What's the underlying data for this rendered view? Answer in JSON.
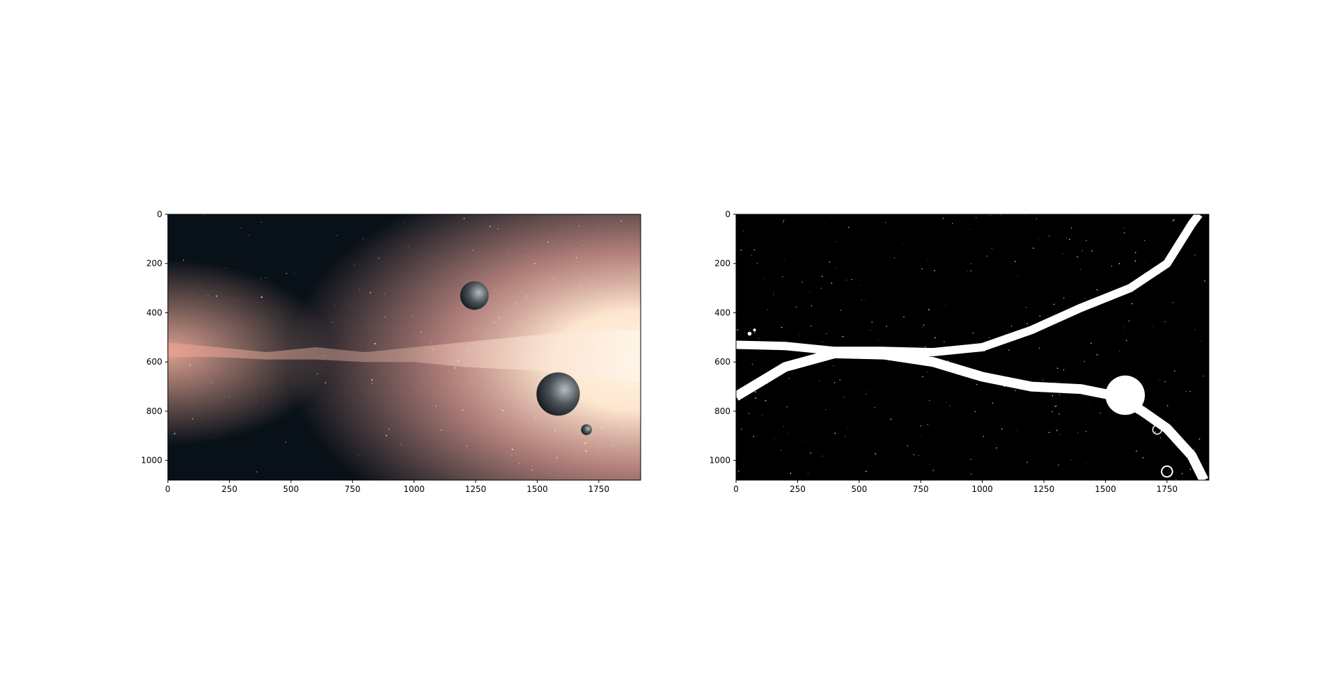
{
  "chart_data": [
    {
      "type": "image",
      "title": "",
      "xlabel": "",
      "ylabel": "",
      "xlim": [
        0,
        1920
      ],
      "ylim": [
        1080,
        0
      ],
      "y_inverted": true,
      "grid": false,
      "xticks": [
        0,
        250,
        500,
        750,
        1000,
        1250,
        1500,
        1750
      ],
      "yticks": [
        0,
        200,
        400,
        600,
        800,
        1000
      ],
      "xtick_labels": [
        "0",
        "250",
        "500",
        "750",
        "1000",
        "1250",
        "1500",
        "1750"
      ],
      "ytick_labels": [
        "0",
        "200",
        "400",
        "600",
        "800",
        "1000"
      ],
      "content": "color",
      "background_color": "#081018",
      "glow_color": "#fff2dc",
      "nebula_color": "#e8a39a",
      "planets": [
        {
          "x": 1245,
          "y": 330,
          "r": 58
        },
        {
          "x": 1585,
          "y": 730,
          "r": 88
        },
        {
          "x": 1700,
          "y": 875,
          "r": 22
        }
      ]
    },
    {
      "type": "image",
      "title": "",
      "xlabel": "",
      "ylabel": "",
      "xlim": [
        0,
        1920
      ],
      "ylim": [
        1080,
        0
      ],
      "y_inverted": true,
      "grid": false,
      "xticks": [
        0,
        250,
        500,
        750,
        1000,
        1250,
        1500,
        1750
      ],
      "yticks": [
        0,
        200,
        400,
        600,
        800,
        1000
      ],
      "xtick_labels": [
        "0",
        "250",
        "500",
        "750",
        "1000",
        "1250",
        "1500",
        "1750"
      ],
      "ytick_labels": [
        "0",
        "200",
        "400",
        "600",
        "800",
        "1000"
      ],
      "content": "binary_mask",
      "background_color": "#000000",
      "mask_color": "#ffffff"
    }
  ]
}
